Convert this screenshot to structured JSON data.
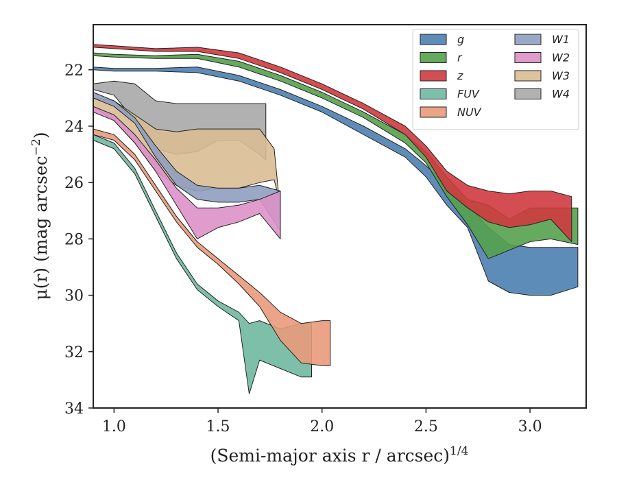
{
  "chart_data": {
    "type": "area",
    "xlabel": "(Semi-major axis r / arcsec)",
    "xlabel_sup": "1/4",
    "ylabel_prefix": "μ(r) (mag arcsec",
    "ylabel_sup": "−2",
    "ylabel_suffix": ")",
    "xlim": [
      0.9,
      3.27
    ],
    "ylim": [
      34.0,
      20.4
    ],
    "y_inverted": true,
    "xticks": [
      1.0,
      1.5,
      2.0,
      2.5,
      3.0
    ],
    "xtick_labels": [
      "1.0",
      "1.5",
      "2.0",
      "2.5",
      "3.0"
    ],
    "yticks": [
      22,
      24,
      26,
      28,
      30,
      32,
      34
    ],
    "ytick_labels": [
      "22",
      "24",
      "26",
      "28",
      "30",
      "32",
      "34"
    ],
    "grid": false,
    "legend_position": "top-right",
    "legend_columns": 2,
    "series": [
      {
        "name": "W4",
        "color": "#a9a9a9",
        "x": [
          0.9,
          1.0,
          1.1,
          1.2,
          1.3,
          1.4,
          1.5,
          1.6,
          1.7,
          1.73
        ],
        "y_upper": [
          22.5,
          22.4,
          22.5,
          23.1,
          23.2,
          23.2,
          23.2,
          23.2,
          23.2,
          23.2
        ],
        "y_lower": [
          22.7,
          22.9,
          23.8,
          24.8,
          25.0,
          24.9,
          24.5,
          24.5,
          25.0,
          25.2
        ]
      },
      {
        "name": "W3",
        "color": "#d9bc93",
        "x": [
          0.9,
          1.0,
          1.1,
          1.2,
          1.3,
          1.4,
          1.5,
          1.6,
          1.7,
          1.77,
          1.79
        ],
        "y_upper": [
          23.0,
          23.1,
          23.6,
          24.1,
          24.2,
          24.1,
          24.1,
          24.1,
          24.1,
          24.8,
          26.3
        ],
        "y_lower": [
          23.3,
          23.8,
          24.6,
          25.6,
          26.1,
          26.3,
          26.2,
          26.2,
          26.0,
          25.9,
          26.5
        ]
      },
      {
        "name": "W1",
        "color": "#8f9fbf",
        "x": [
          0.9,
          1.0,
          1.1,
          1.2,
          1.3,
          1.4,
          1.5,
          1.6,
          1.7,
          1.8
        ],
        "y_upper": [
          22.8,
          23.1,
          23.7,
          24.7,
          25.6,
          26.1,
          26.2,
          26.2,
          26.1,
          26.3
        ],
        "y_lower": [
          23.0,
          23.3,
          23.9,
          25.1,
          26.1,
          26.6,
          26.7,
          26.7,
          26.6,
          27.7
        ]
      },
      {
        "name": "W2",
        "color": "#dc91c8",
        "x": [
          0.9,
          1.0,
          1.1,
          1.2,
          1.3,
          1.4,
          1.5,
          1.6,
          1.7,
          1.8
        ],
        "y_upper": [
          23.3,
          23.6,
          24.3,
          25.2,
          26.2,
          26.9,
          26.9,
          26.8,
          26.6,
          26.3
        ],
        "y_lower": [
          23.5,
          23.8,
          24.6,
          25.6,
          26.8,
          28.0,
          27.6,
          27.4,
          27.1,
          28.0
        ]
      },
      {
        "name": "FUV",
        "color": "#70b8a1",
        "x": [
          0.9,
          1.0,
          1.1,
          1.2,
          1.3,
          1.4,
          1.5,
          1.6,
          1.65,
          1.7,
          1.8,
          1.9,
          1.95
        ],
        "y_upper": [
          24.3,
          24.6,
          25.5,
          27.0,
          28.5,
          29.6,
          30.2,
          30.6,
          31.0,
          30.9,
          31.2,
          31.0,
          31.0
        ],
        "y_lower": [
          24.5,
          24.8,
          25.7,
          27.2,
          28.7,
          29.8,
          30.4,
          30.9,
          33.5,
          32.3,
          32.6,
          32.9,
          32.9
        ]
      },
      {
        "name": "NUV",
        "color": "#e99a7b",
        "x": [
          0.9,
          1.0,
          1.1,
          1.2,
          1.3,
          1.4,
          1.5,
          1.6,
          1.7,
          1.8,
          1.9,
          2.0,
          2.04
        ],
        "y_upper": [
          24.1,
          24.3,
          25.0,
          26.1,
          27.2,
          28.1,
          28.7,
          29.3,
          29.9,
          30.6,
          31.0,
          30.9,
          30.9
        ],
        "y_lower": [
          24.3,
          24.5,
          25.2,
          26.3,
          27.4,
          28.3,
          28.9,
          29.6,
          30.4,
          31.6,
          32.4,
          32.5,
          32.5
        ]
      },
      {
        "name": "g",
        "color": "#4c7fb0",
        "x": [
          0.9,
          1.0,
          1.2,
          1.4,
          1.6,
          1.8,
          2.0,
          2.2,
          2.4,
          2.5,
          2.6,
          2.7,
          2.8,
          2.9,
          3.0,
          3.1,
          3.23
        ],
        "y_upper": [
          21.9,
          21.95,
          21.95,
          21.9,
          22.2,
          22.7,
          23.3,
          24.0,
          24.8,
          25.4,
          26.1,
          26.8,
          27.6,
          28.2,
          28.3,
          28.3,
          28.3
        ],
        "y_lower": [
          22.0,
          22.05,
          22.05,
          22.1,
          22.4,
          22.9,
          23.5,
          24.3,
          25.1,
          25.8,
          26.8,
          27.6,
          29.5,
          29.9,
          30.0,
          30.0,
          29.7
        ]
      },
      {
        "name": "r",
        "color": "#55a14e",
        "x": [
          0.9,
          1.0,
          1.2,
          1.4,
          1.6,
          1.8,
          2.0,
          2.2,
          2.4,
          2.5,
          2.6,
          2.7,
          2.8,
          2.9,
          3.0,
          3.1,
          3.23
        ],
        "y_upper": [
          21.4,
          21.45,
          21.5,
          21.45,
          21.7,
          22.2,
          22.8,
          23.5,
          24.3,
          24.9,
          25.8,
          26.6,
          26.8,
          27.3,
          26.9,
          26.9,
          26.9
        ],
        "y_lower": [
          21.5,
          21.55,
          21.6,
          21.6,
          21.9,
          22.4,
          23.0,
          23.7,
          24.6,
          25.3,
          26.5,
          27.5,
          28.7,
          28.4,
          28.1,
          28.0,
          28.2
        ]
      },
      {
        "name": "z",
        "color": "#cf3a3f",
        "x": [
          0.9,
          1.0,
          1.2,
          1.4,
          1.6,
          1.8,
          2.0,
          2.2,
          2.4,
          2.5,
          2.6,
          2.7,
          2.8,
          2.9,
          3.0,
          3.1,
          3.2
        ],
        "y_upper": [
          21.1,
          21.15,
          21.25,
          21.2,
          21.4,
          21.9,
          22.5,
          23.2,
          24.0,
          24.7,
          25.6,
          26.1,
          26.3,
          26.4,
          26.3,
          26.3,
          26.5
        ],
        "y_lower": [
          21.2,
          21.25,
          21.35,
          21.35,
          21.6,
          22.1,
          22.7,
          23.4,
          24.3,
          25.1,
          26.3,
          26.9,
          27.4,
          27.6,
          27.5,
          27.3,
          28.1
        ]
      }
    ]
  }
}
